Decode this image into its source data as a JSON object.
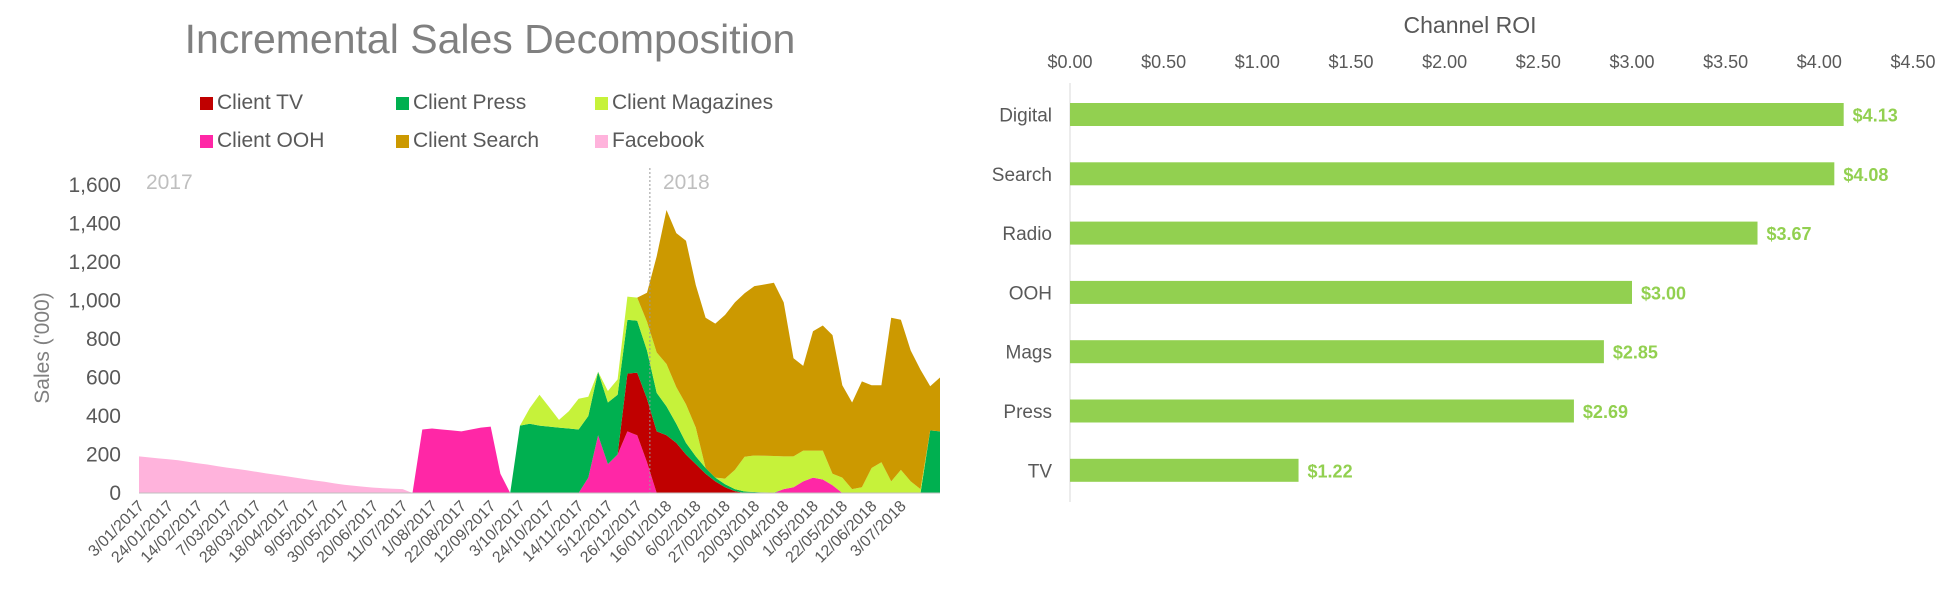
{
  "chart_data": [
    {
      "type": "area",
      "title": "Incremental Sales Decomposition",
      "ylabel": "Sales ('000)",
      "xlabel": "",
      "ylim": [
        0,
        1600
      ],
      "yticks": [
        "0",
        "200",
        "400",
        "600",
        "800",
        "1,000",
        "1,200",
        "1,400",
        "1,600"
      ],
      "stacked": true,
      "grid": false,
      "legend_position": "top",
      "year_labels": [
        "2017",
        "2018"
      ],
      "x_tick_labels": [
        "3/01/2017",
        "24/01/2017",
        "14/02/2017",
        "7/03/2017",
        "28/03/2017",
        "18/04/2017",
        "9/05/2017",
        "30/05/2017",
        "20/06/2017",
        "11/07/2017",
        "1/08/2017",
        "22/08/2017",
        "12/09/2017",
        "3/10/2017",
        "24/10/2017",
        "14/11/2017",
        "5/12/2017",
        "26/12/2017",
        "16/01/2018",
        "6/02/2018",
        "27/02/2018",
        "20/03/2018",
        "10/04/2018",
        "1/05/2018",
        "22/05/2018",
        "12/06/2018",
        "3/07/2018"
      ],
      "tick_every_weeks": 3,
      "num_weeks": 83,
      "series": [
        {
          "name": "Facebook",
          "color": "#ffb3dc",
          "values": [
            190,
            185,
            180,
            175,
            170,
            162,
            155,
            148,
            140,
            132,
            125,
            118,
            110,
            102,
            95,
            88,
            80,
            72,
            65,
            58,
            50,
            43,
            38,
            32,
            28,
            25,
            22,
            20,
            0,
            0,
            0,
            0,
            0,
            0,
            0,
            0,
            0,
            0,
            0,
            0,
            0,
            0,
            0,
            0,
            0,
            0,
            0,
            0,
            0,
            0,
            0,
            0,
            0,
            0,
            0,
            0,
            0,
            0,
            0,
            0,
            0,
            0,
            0,
            0,
            0,
            0,
            0,
            0,
            0,
            0,
            0,
            0,
            0,
            0,
            0,
            0,
            0,
            0,
            0,
            0,
            0,
            0,
            0
          ]
        },
        {
          "name": "Client OOH",
          "color": "#ff27a6",
          "values": [
            0,
            0,
            0,
            0,
            0,
            0,
            0,
            0,
            0,
            0,
            0,
            0,
            0,
            0,
            0,
            0,
            0,
            0,
            0,
            0,
            0,
            0,
            0,
            0,
            0,
            0,
            0,
            0,
            0,
            330,
            335,
            330,
            325,
            320,
            330,
            340,
            345,
            100,
            0,
            0,
            0,
            0,
            0,
            0,
            0,
            0,
            80,
            300,
            150,
            200,
            320,
            300,
            160,
            0,
            0,
            0,
            0,
            0,
            0,
            0,
            0,
            0,
            0,
            0,
            0,
            0,
            20,
            30,
            60,
            80,
            70,
            40,
            0,
            0,
            0,
            0,
            0,
            0,
            0,
            0,
            0,
            0,
            0
          ]
        },
        {
          "name": "Client TV",
          "color": "#c00000",
          "values": [
            0,
            0,
            0,
            0,
            0,
            0,
            0,
            0,
            0,
            0,
            0,
            0,
            0,
            0,
            0,
            0,
            0,
            0,
            0,
            0,
            0,
            0,
            0,
            0,
            0,
            0,
            0,
            0,
            0,
            0,
            0,
            0,
            0,
            0,
            0,
            0,
            0,
            0,
            0,
            0,
            0,
            0,
            0,
            0,
            0,
            0,
            0,
            0,
            0,
            0,
            300,
            325,
            330,
            320,
            300,
            260,
            200,
            150,
            100,
            60,
            30,
            10,
            0,
            0,
            0,
            0,
            0,
            0,
            0,
            0,
            0,
            0,
            0,
            0,
            0,
            0,
            0,
            0,
            0,
            0,
            0,
            0,
            0
          ]
        },
        {
          "name": "Client Press",
          "color": "#00b050",
          "values": [
            0,
            0,
            0,
            0,
            0,
            0,
            0,
            0,
            0,
            0,
            0,
            0,
            0,
            0,
            0,
            0,
            0,
            0,
            0,
            0,
            0,
            0,
            0,
            0,
            0,
            0,
            0,
            0,
            0,
            0,
            0,
            0,
            0,
            0,
            0,
            0,
            0,
            0,
            0,
            350,
            360,
            350,
            345,
            340,
            335,
            330,
            320,
            330,
            320,
            310,
            280,
            270,
            250,
            200,
            150,
            100,
            60,
            40,
            30,
            20,
            15,
            10,
            8,
            5,
            3,
            2,
            0,
            0,
            0,
            0,
            0,
            0,
            0,
            0,
            0,
            0,
            0,
            0,
            0,
            0,
            0,
            325,
            320
          ]
        },
        {
          "name": "Client Magazines",
          "color": "#c6f23a",
          "values": [
            0,
            0,
            0,
            0,
            0,
            0,
            0,
            0,
            0,
            0,
            0,
            0,
            0,
            0,
            0,
            0,
            0,
            0,
            0,
            0,
            0,
            0,
            0,
            0,
            0,
            0,
            0,
            0,
            0,
            0,
            0,
            0,
            0,
            0,
            0,
            0,
            0,
            0,
            0,
            0,
            80,
            160,
            100,
            40,
            90,
            160,
            100,
            0,
            60,
            80,
            120,
            120,
            150,
            210,
            220,
            190,
            200,
            150,
            0,
            0,
            30,
            100,
            180,
            190,
            190,
            190,
            170,
            160,
            160,
            140,
            150,
            60,
            80,
            20,
            30,
            130,
            160,
            60,
            120,
            60,
            20,
            0,
            0
          ]
        },
        {
          "name": "Client Search",
          "color": "#cc9900",
          "values": [
            0,
            0,
            0,
            0,
            0,
            0,
            0,
            0,
            0,
            0,
            0,
            0,
            0,
            0,
            0,
            0,
            0,
            0,
            0,
            0,
            0,
            0,
            0,
            0,
            0,
            0,
            0,
            0,
            0,
            0,
            0,
            0,
            0,
            0,
            0,
            0,
            0,
            0,
            0,
            0,
            0,
            0,
            0,
            0,
            0,
            0,
            0,
            0,
            0,
            0,
            0,
            0,
            150,
            500,
            800,
            800,
            850,
            740,
            780,
            800,
            850,
            870,
            850,
            880,
            890,
            900,
            800,
            510,
            440,
            620,
            650,
            720,
            480,
            450,
            550,
            430,
            400,
            850,
            780,
            680,
            620,
            230,
            280
          ]
        }
      ]
    },
    {
      "type": "bar",
      "orientation": "horizontal",
      "title": "Channel ROI",
      "categories": [
        "Digital",
        "Search",
        "Radio",
        "OOH",
        "Mags",
        "Press",
        "TV"
      ],
      "values": [
        4.13,
        4.08,
        3.67,
        3.0,
        2.85,
        2.69,
        1.22
      ],
      "value_labels": [
        "$4.13",
        "$4.08",
        "$3.67",
        "$3.00",
        "$2.85",
        "$2.69",
        "$1.22"
      ],
      "xlim": [
        0,
        4.5
      ],
      "xticks": [
        "$0.00",
        "$0.50",
        "$1.00",
        "$1.50",
        "$2.00",
        "$2.50",
        "$3.00",
        "$3.50",
        "$4.00",
        "$4.50"
      ],
      "xaxis_position": "top",
      "bar_color": "#92d050",
      "label_color": "#92d050",
      "grid": false
    }
  ]
}
